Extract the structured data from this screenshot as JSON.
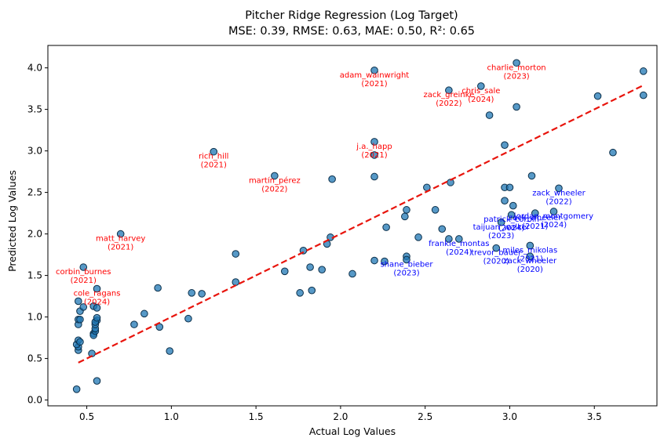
{
  "chart_data": {
    "type": "scatter",
    "title": "Pitcher Ridge Regression (Log Target)",
    "subtitle": "MSE: 0.39, RMSE: 0.63, MAE: 0.50, R²: 0.65",
    "xlabel": "Actual Log Values",
    "ylabel": "Predicted Log Values",
    "xlim": [
      0.27,
      3.87
    ],
    "ylim": [
      -0.07,
      4.27
    ],
    "xticks": [
      "0.5",
      "1.0",
      "1.5",
      "2.0",
      "2.5",
      "3.0",
      "3.5"
    ],
    "yticks": [
      "0.0",
      "0.5",
      "1.0",
      "1.5",
      "2.0",
      "2.5",
      "3.0",
      "3.5",
      "4.0"
    ],
    "grid": false,
    "colors": {
      "point_fill": "#1f77b4",
      "point_edge": "#0b2f4a",
      "fit_line": "#e8140c",
      "over_label": "#ff0000",
      "under_label": "#0000ff"
    },
    "fit_line": {
      "x": [
        0.45,
        3.79
      ],
      "y": [
        0.45,
        3.79
      ]
    },
    "points": [
      {
        "x": 0.44,
        "y": 0.13
      },
      {
        "x": 0.56,
        "y": 0.23
      },
      {
        "x": 0.45,
        "y": 0.6
      },
      {
        "x": 0.45,
        "y": 0.64
      },
      {
        "x": 0.44,
        "y": 0.67
      },
      {
        "x": 0.45,
        "y": 0.72
      },
      {
        "x": 0.46,
        "y": 0.7
      },
      {
        "x": 0.53,
        "y": 0.56
      },
      {
        "x": 0.54,
        "y": 0.8
      },
      {
        "x": 0.54,
        "y": 0.78
      },
      {
        "x": 0.55,
        "y": 0.83
      },
      {
        "x": 0.55,
        "y": 0.86
      },
      {
        "x": 0.55,
        "y": 0.91
      },
      {
        "x": 0.56,
        "y": 0.96
      },
      {
        "x": 0.55,
        "y": 0.94
      },
      {
        "x": 0.56,
        "y": 0.99
      },
      {
        "x": 0.45,
        "y": 0.91
      },
      {
        "x": 0.45,
        "y": 0.97
      },
      {
        "x": 0.46,
        "y": 0.97
      },
      {
        "x": 0.46,
        "y": 1.07
      },
      {
        "x": 0.48,
        "y": 1.12
      },
      {
        "x": 0.54,
        "y": 1.13
      },
      {
        "x": 0.45,
        "y": 1.19
      },
      {
        "x": 0.56,
        "y": 1.11
      },
      {
        "x": 0.56,
        "y": 1.34
      },
      {
        "x": 0.48,
        "y": 1.6
      },
      {
        "x": 0.7,
        "y": 2.0
      },
      {
        "x": 0.78,
        "y": 0.91
      },
      {
        "x": 0.84,
        "y": 1.04
      },
      {
        "x": 0.92,
        "y": 1.35
      },
      {
        "x": 0.93,
        "y": 0.88
      },
      {
        "x": 0.99,
        "y": 0.59
      },
      {
        "x": 1.1,
        "y": 0.98
      },
      {
        "x": 1.12,
        "y": 1.29
      },
      {
        "x": 1.18,
        "y": 1.28
      },
      {
        "x": 1.25,
        "y": 2.99
      },
      {
        "x": 1.38,
        "y": 1.76
      },
      {
        "x": 1.38,
        "y": 1.42
      },
      {
        "x": 1.61,
        "y": 2.7
      },
      {
        "x": 1.67,
        "y": 1.55
      },
      {
        "x": 1.76,
        "y": 1.29
      },
      {
        "x": 1.78,
        "y": 1.8
      },
      {
        "x": 1.82,
        "y": 1.6
      },
      {
        "x": 1.83,
        "y": 1.32
      },
      {
        "x": 1.89,
        "y": 1.57
      },
      {
        "x": 1.92,
        "y": 1.88
      },
      {
        "x": 1.94,
        "y": 1.96
      },
      {
        "x": 1.95,
        "y": 2.66
      },
      {
        "x": 2.07,
        "y": 1.52
      },
      {
        "x": 2.2,
        "y": 3.97
      },
      {
        "x": 2.2,
        "y": 3.11
      },
      {
        "x": 2.2,
        "y": 2.95
      },
      {
        "x": 2.2,
        "y": 2.69
      },
      {
        "x": 2.2,
        "y": 1.68
      },
      {
        "x": 2.26,
        "y": 1.67
      },
      {
        "x": 2.27,
        "y": 2.08
      },
      {
        "x": 2.38,
        "y": 2.21
      },
      {
        "x": 2.39,
        "y": 2.29
      },
      {
        "x": 2.39,
        "y": 1.73
      },
      {
        "x": 2.39,
        "y": 1.69
      },
      {
        "x": 2.46,
        "y": 1.96
      },
      {
        "x": 2.51,
        "y": 2.56
      },
      {
        "x": 2.56,
        "y": 2.29
      },
      {
        "x": 2.6,
        "y": 2.06
      },
      {
        "x": 2.64,
        "y": 3.73
      },
      {
        "x": 2.65,
        "y": 2.62
      },
      {
        "x": 2.64,
        "y": 1.94
      },
      {
        "x": 2.7,
        "y": 1.94
      },
      {
        "x": 2.83,
        "y": 3.78
      },
      {
        "x": 2.88,
        "y": 3.43
      },
      {
        "x": 2.92,
        "y": 1.83
      },
      {
        "x": 2.95,
        "y": 2.14
      },
      {
        "x": 2.97,
        "y": 3.07
      },
      {
        "x": 2.97,
        "y": 2.56
      },
      {
        "x": 2.97,
        "y": 2.4
      },
      {
        "x": 3.0,
        "y": 2.56
      },
      {
        "x": 3.02,
        "y": 2.34
      },
      {
        "x": 3.01,
        "y": 2.23
      },
      {
        "x": 3.04,
        "y": 4.06
      },
      {
        "x": 3.04,
        "y": 3.53
      },
      {
        "x": 3.13,
        "y": 2.7
      },
      {
        "x": 3.15,
        "y": 2.25
      },
      {
        "x": 3.12,
        "y": 1.86
      },
      {
        "x": 3.12,
        "y": 1.73
      },
      {
        "x": 3.26,
        "y": 2.27
      },
      {
        "x": 3.29,
        "y": 2.55
      },
      {
        "x": 3.52,
        "y": 3.66
      },
      {
        "x": 3.61,
        "y": 2.98
      },
      {
        "x": 3.79,
        "y": 3.96
      },
      {
        "x": 3.79,
        "y": 3.67
      }
    ],
    "annotations": [
      {
        "text": "adam_wainwright\n(2021)",
        "x": 2.2,
        "y": 3.97,
        "group": "over"
      },
      {
        "text": "charlie_morton\n(2023)",
        "x": 3.04,
        "y": 4.06,
        "group": "over"
      },
      {
        "text": "chris_sale\n(2024)",
        "x": 2.83,
        "y": 3.78,
        "group": "over"
      },
      {
        "text": "zack_greinke\n(2022)",
        "x": 2.64,
        "y": 3.73,
        "group": "over"
      },
      {
        "text": "rich_hill\n(2021)",
        "x": 1.25,
        "y": 2.99,
        "group": "over"
      },
      {
        "text": "j.a._happ\n(2021)",
        "x": 2.2,
        "y": 3.11,
        "group": "over"
      },
      {
        "text": "martín_pérez\n(2022)",
        "x": 1.61,
        "y": 2.7,
        "group": "over"
      },
      {
        "text": "matt_harvey\n(2021)",
        "x": 0.7,
        "y": 2.0,
        "group": "over"
      },
      {
        "text": "corbin_burnes\n(2021)",
        "x": 0.48,
        "y": 1.6,
        "group": "over"
      },
      {
        "text": "cole_ragans\n(2024)",
        "x": 0.56,
        "y": 1.34,
        "group": "over"
      },
      {
        "text": "zack_wheeler\n(2022)",
        "x": 3.29,
        "y": 2.55,
        "group": "under"
      },
      {
        "text": "jordan_montgomery\n(2024)",
        "x": 3.26,
        "y": 2.27,
        "group": "under"
      },
      {
        "text": "zack_wheeler\n(2021)",
        "x": 3.15,
        "y": 2.25,
        "group": "under"
      },
      {
        "text": "patrick_corbin\n(2024)",
        "x": 3.01,
        "y": 2.23,
        "group": "under"
      },
      {
        "text": "taijuan_walker\n(2023)",
        "x": 2.95,
        "y": 2.14,
        "group": "under"
      },
      {
        "text": "frankie_montas\n(2024)",
        "x": 2.7,
        "y": 1.94,
        "group": "under"
      },
      {
        "text": "miles_mikolas\n(2021)",
        "x": 3.12,
        "y": 1.86,
        "group": "under"
      },
      {
        "text": "trevor_bauer\n(2020)",
        "x": 2.92,
        "y": 1.83,
        "group": "under"
      },
      {
        "text": "zack_wheeler\n(2020)",
        "x": 3.12,
        "y": 1.73,
        "group": "under"
      },
      {
        "text": "shane_bieber\n(2023)",
        "x": 2.39,
        "y": 1.69,
        "group": "under"
      }
    ]
  }
}
